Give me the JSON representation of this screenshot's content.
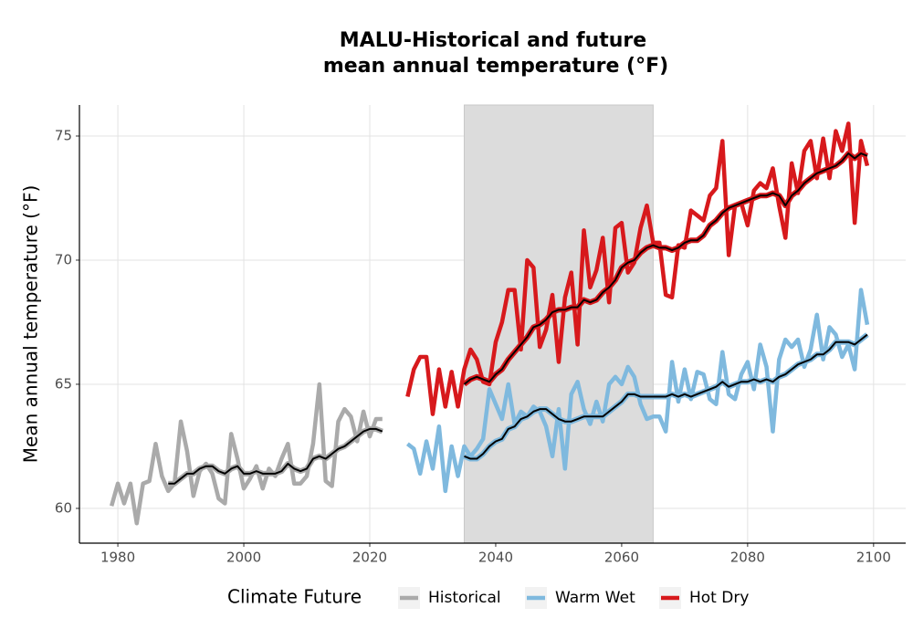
{
  "chart_data": {
    "type": "line",
    "title": [
      "MALU-Historical and future",
      "mean annual temperature (°F)"
    ],
    "y_label": "Mean annual temperature (°F)",
    "legend_title": "Climate Future",
    "legend_position": "bottom",
    "grid": true,
    "shade": {
      "xlim": [
        2035,
        2065
      ],
      "color": "#dcdcdc"
    },
    "xlim": [
      1973.9,
      2105.1
    ],
    "xticks": [
      1980,
      2000,
      2020,
      2040,
      2060,
      2080,
      2100
    ],
    "ylim": [
      58.6,
      76.25
    ],
    "yticks": [
      60,
      65,
      70,
      75
    ],
    "smooth_color": "#000000",
    "series": [
      {
        "name": "Historical",
        "color": "#aaaaaa",
        "x": [
          1979,
          1980,
          1981,
          1982,
          1983,
          1984,
          1985,
          1986,
          1987,
          1988,
          1989,
          1990,
          1991,
          1992,
          1993,
          1994,
          1995,
          1996,
          1997,
          1998,
          1999,
          2000,
          2001,
          2002,
          2003,
          2004,
          2005,
          2006,
          2007,
          2008,
          2009,
          2010,
          2011,
          2012,
          2013,
          2014,
          2015,
          2016,
          2017,
          2018,
          2019,
          2020,
          2021,
          2022
        ],
        "values": [
          60.1,
          61.0,
          60.2,
          61.0,
          59.4,
          61.0,
          61.1,
          62.6,
          61.3,
          60.7,
          61.0,
          63.5,
          62.3,
          60.5,
          61.5,
          61.8,
          61.4,
          60.4,
          60.2,
          63.0,
          62.0,
          60.8,
          61.2,
          61.7,
          60.8,
          61.6,
          61.3,
          62.0,
          62.6,
          61.0,
          61.0,
          61.3,
          62.6,
          65.0,
          61.1,
          60.9,
          63.5,
          64.0,
          63.7,
          62.7,
          63.9,
          62.9,
          63.6,
          63.6
        ],
        "smoothed_values": [
          null,
          null,
          null,
          null,
          null,
          null,
          null,
          null,
          null,
          61.0,
          61.0,
          61.2,
          61.4,
          61.4,
          61.6,
          61.7,
          61.7,
          61.5,
          61.4,
          61.6,
          61.7,
          61.4,
          61.4,
          61.5,
          61.4,
          61.4,
          61.4,
          61.5,
          61.8,
          61.6,
          61.5,
          61.6,
          62.0,
          62.1,
          62.0,
          62.2,
          62.4,
          62.5,
          62.7,
          62.9,
          63.1,
          63.2,
          63.2,
          63.1
        ]
      },
      {
        "name": "Warm Wet",
        "color": "#7fb9de",
        "x": [
          2026,
          2027,
          2028,
          2029,
          2030,
          2031,
          2032,
          2033,
          2034,
          2035,
          2036,
          2037,
          2038,
          2039,
          2040,
          2041,
          2042,
          2043,
          2044,
          2045,
          2046,
          2047,
          2048,
          2049,
          2050,
          2051,
          2052,
          2053,
          2054,
          2055,
          2056,
          2057,
          2058,
          2059,
          2060,
          2061,
          2062,
          2063,
          2064,
          2065,
          2066,
          2067,
          2068,
          2069,
          2070,
          2071,
          2072,
          2073,
          2074,
          2075,
          2076,
          2077,
          2078,
          2079,
          2080,
          2081,
          2082,
          2083,
          2084,
          2085,
          2086,
          2087,
          2088,
          2089,
          2090,
          2091,
          2092,
          2093,
          2094,
          2095,
          2096,
          2097,
          2098,
          2099
        ],
        "values": [
          62.6,
          62.4,
          61.4,
          62.7,
          61.6,
          63.3,
          60.7,
          62.5,
          61.3,
          62.5,
          62.1,
          62.4,
          62.8,
          64.8,
          64.2,
          63.6,
          65.0,
          63.4,
          63.9,
          63.7,
          64.1,
          63.9,
          63.3,
          62.1,
          64.0,
          61.6,
          64.6,
          65.1,
          64.0,
          63.4,
          64.3,
          63.5,
          65.0,
          65.3,
          65.0,
          65.7,
          65.3,
          64.2,
          63.6,
          63.7,
          63.7,
          63.1,
          65.9,
          64.3,
          65.6,
          64.4,
          65.5,
          65.4,
          64.4,
          64.2,
          66.3,
          64.6,
          64.4,
          65.4,
          65.9,
          64.8,
          66.6,
          65.7,
          63.1,
          66.0,
          66.8,
          66.5,
          66.8,
          65.7,
          66.4,
          67.8,
          66.0,
          67.3,
          67.0,
          66.1,
          66.6,
          65.6,
          68.8,
          67.4
        ],
        "smoothed_values": [
          null,
          null,
          null,
          null,
          null,
          null,
          null,
          null,
          null,
          62.1,
          62.0,
          62.0,
          62.2,
          62.5,
          62.7,
          62.8,
          63.2,
          63.3,
          63.6,
          63.7,
          63.9,
          64.0,
          64.0,
          63.8,
          63.6,
          63.5,
          63.5,
          63.6,
          63.7,
          63.7,
          63.7,
          63.7,
          63.9,
          64.1,
          64.3,
          64.6,
          64.6,
          64.5,
          64.5,
          64.5,
          64.5,
          64.5,
          64.6,
          64.5,
          64.6,
          64.5,
          64.6,
          64.7,
          64.8,
          64.9,
          65.1,
          64.9,
          65.0,
          65.1,
          65.1,
          65.2,
          65.1,
          65.2,
          65.1,
          65.3,
          65.4,
          65.6,
          65.8,
          65.9,
          66.0,
          66.2,
          66.2,
          66.4,
          66.7,
          66.7,
          66.7,
          66.6,
          66.8,
          67.0
        ]
      },
      {
        "name": "Hot Dry",
        "color": "#d7191c",
        "x": [
          2026,
          2027,
          2028,
          2029,
          2030,
          2031,
          2032,
          2033,
          2034,
          2035,
          2036,
          2037,
          2038,
          2039,
          2040,
          2041,
          2042,
          2043,
          2044,
          2045,
          2046,
          2047,
          2048,
          2049,
          2050,
          2051,
          2052,
          2053,
          2054,
          2055,
          2056,
          2057,
          2058,
          2059,
          2060,
          2061,
          2062,
          2063,
          2064,
          2065,
          2066,
          2067,
          2068,
          2069,
          2070,
          2071,
          2072,
          2073,
          2074,
          2075,
          2076,
          2077,
          2078,
          2079,
          2080,
          2081,
          2082,
          2083,
          2084,
          2085,
          2086,
          2087,
          2088,
          2089,
          2090,
          2091,
          2092,
          2093,
          2094,
          2095,
          2096,
          2097,
          2098,
          2099
        ],
        "values": [
          64.5,
          65.6,
          66.1,
          66.1,
          63.8,
          65.6,
          64.1,
          65.5,
          64.1,
          65.6,
          66.4,
          66.0,
          65.1,
          65.0,
          66.7,
          67.5,
          68.8,
          68.8,
          66.4,
          70.0,
          69.7,
          66.5,
          67.2,
          68.6,
          65.9,
          68.5,
          69.5,
          66.6,
          71.2,
          68.9,
          69.6,
          70.9,
          68.3,
          71.3,
          71.5,
          69.5,
          69.9,
          71.3,
          72.2,
          70.7,
          70.7,
          68.6,
          68.5,
          70.6,
          70.5,
          72.0,
          71.8,
          71.6,
          72.6,
          72.9,
          74.8,
          70.2,
          72.2,
          72.3,
          71.4,
          72.8,
          73.1,
          72.9,
          73.7,
          72.2,
          70.9,
          73.9,
          72.7,
          74.4,
          74.8,
          73.3,
          74.9,
          73.3,
          75.2,
          74.4,
          75.5,
          71.5,
          74.8,
          73.8
        ],
        "smoothed_values": [
          null,
          null,
          null,
          null,
          null,
          null,
          null,
          null,
          null,
          65.0,
          65.2,
          65.3,
          65.2,
          65.1,
          65.4,
          65.6,
          66.0,
          66.3,
          66.6,
          66.9,
          67.3,
          67.4,
          67.6,
          67.9,
          68.0,
          68.0,
          68.1,
          68.1,
          68.4,
          68.3,
          68.4,
          68.7,
          68.9,
          69.2,
          69.7,
          69.9,
          70.0,
          70.3,
          70.5,
          70.6,
          70.5,
          70.5,
          70.4,
          70.5,
          70.7,
          70.8,
          70.8,
          71.0,
          71.4,
          71.6,
          71.9,
          72.1,
          72.2,
          72.3,
          72.4,
          72.5,
          72.6,
          72.6,
          72.7,
          72.6,
          72.2,
          72.6,
          72.8,
          73.1,
          73.3,
          73.5,
          73.6,
          73.7,
          73.8,
          74.0,
          74.3,
          74.1,
          74.3,
          74.2
        ]
      }
    ]
  }
}
